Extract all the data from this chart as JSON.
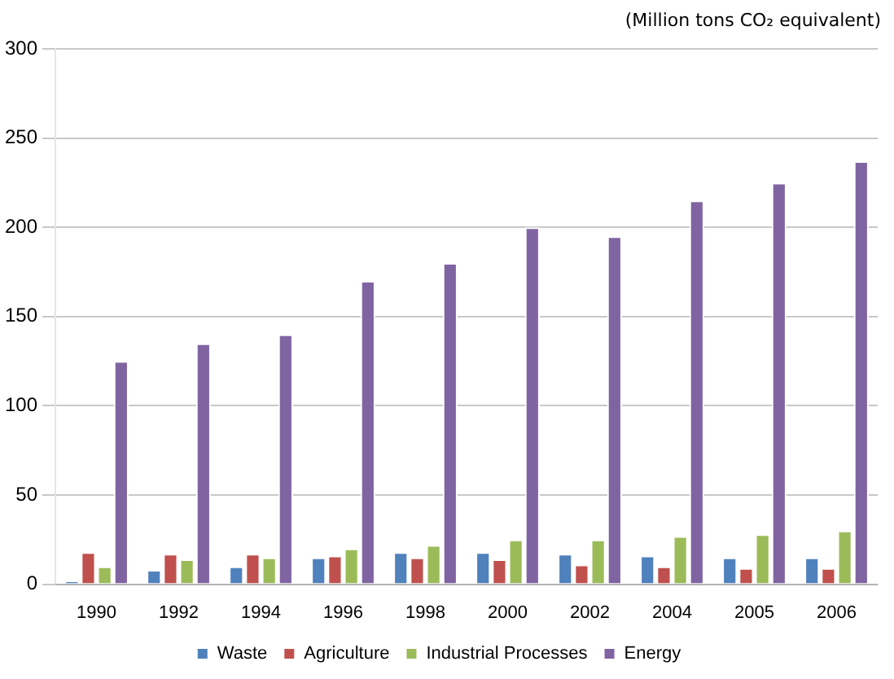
{
  "chart_data": {
    "type": "bar",
    "ylabel": "(Million tons CO₂ equivalent)",
    "categories": [
      "1990",
      "1992",
      "1994",
      "1996",
      "1998",
      "2000",
      "2002",
      "2004",
      "2005",
      "2006"
    ],
    "series": [
      {
        "name": "Waste",
        "color": "#4f81bd",
        "values": [
          2,
          8,
          10,
          15,
          18,
          18,
          17,
          16,
          15,
          15
        ]
      },
      {
        "name": "Agriculture",
        "color": "#c0504d",
        "values": [
          18,
          17,
          17,
          16,
          15,
          14,
          11,
          10,
          9,
          9
        ]
      },
      {
        "name": "Industrial Processes",
        "color": "#9bbb59",
        "values": [
          10,
          14,
          15,
          20,
          22,
          25,
          25,
          27,
          28,
          30
        ]
      },
      {
        "name": "Energy",
        "color": "#8064a2",
        "values": [
          125,
          135,
          140,
          170,
          180,
          200,
          195,
          215,
          225,
          237
        ]
      }
    ],
    "ylim": [
      0,
      300
    ],
    "yticks": [
      0,
      50,
      100,
      150,
      200,
      250,
      300
    ],
    "grid": "y",
    "legend": "bottom"
  }
}
